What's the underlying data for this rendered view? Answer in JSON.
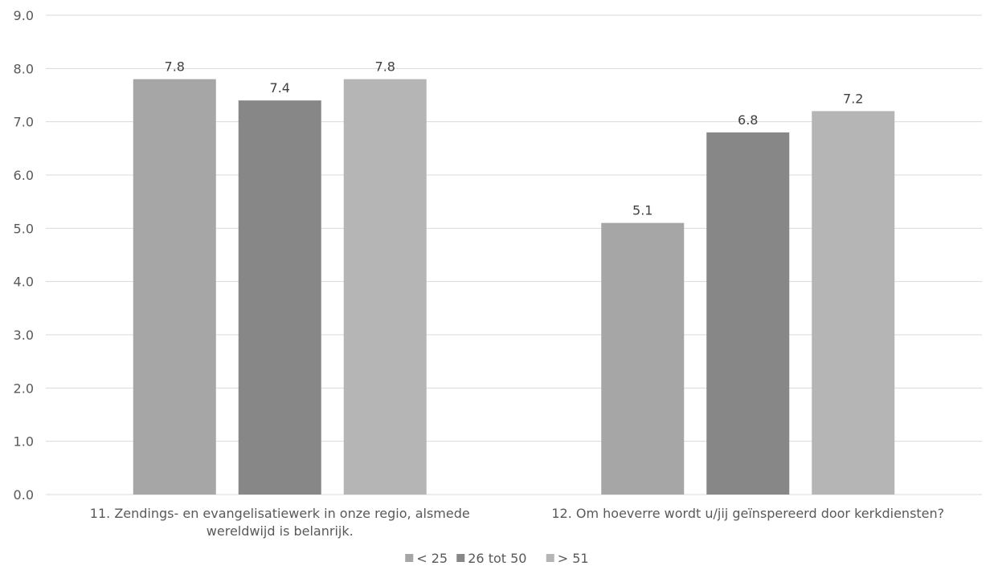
{
  "chart_data": {
    "type": "bar",
    "title": "",
    "xlabel": "",
    "ylabel": "",
    "ylim": [
      0,
      9
    ],
    "yticks": [
      "0.0",
      "1.0",
      "2.0",
      "3.0",
      "4.0",
      "5.0",
      "6.0",
      "7.0",
      "8.0",
      "9.0"
    ],
    "grid": true,
    "legend_position": "bottom",
    "categories": [
      [
        "11. Zendings- en evangelisatiewerk in onze regio, alsmede",
        "wereldwijd is belanrijk."
      ],
      [
        "12. Om hoeverre wordt u/jij geïnspereerd door kerkdiensten?"
      ]
    ],
    "series": [
      {
        "name": "< 25",
        "color": "#a6a6a6",
        "values": [
          7.8,
          5.1
        ],
        "labels": [
          "7.8",
          "5.1"
        ]
      },
      {
        "name": "26 tot 50",
        "color": "#878787",
        "values": [
          7.4,
          6.8
        ],
        "labels": [
          "7.4",
          "6.8"
        ]
      },
      {
        "name": "> 51",
        "color": "#b5b5b5",
        "values": [
          7.8,
          7.2
        ],
        "labels": [
          "7.8",
          "7.2"
        ]
      }
    ]
  }
}
